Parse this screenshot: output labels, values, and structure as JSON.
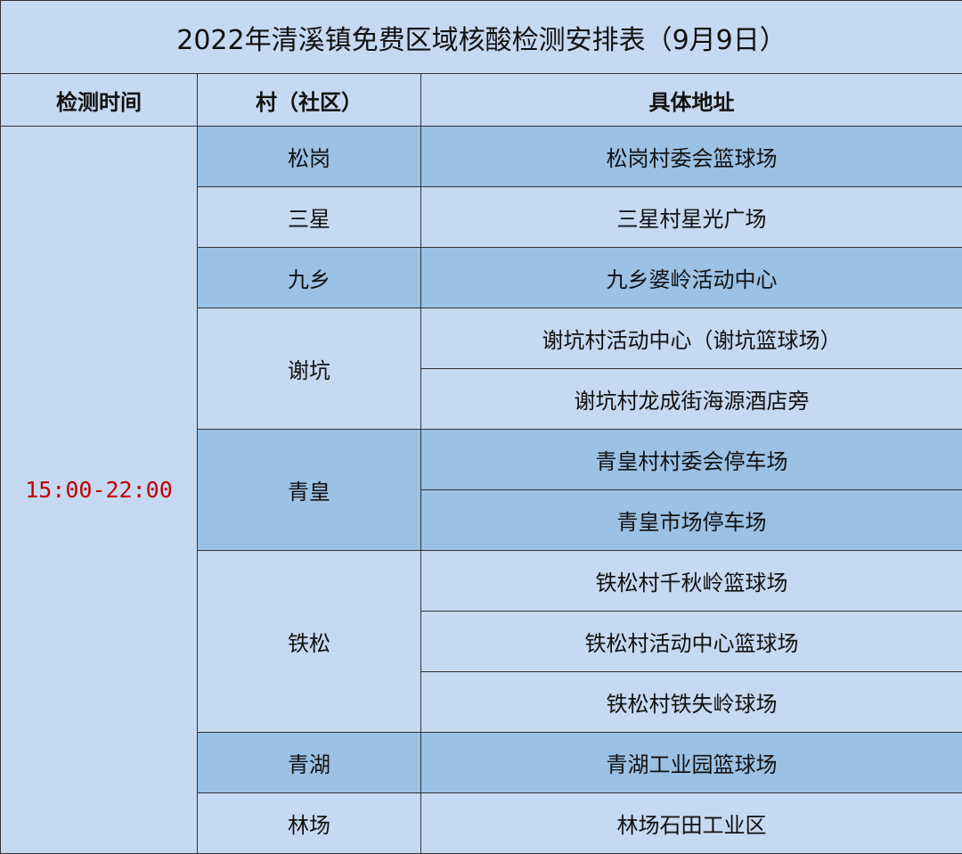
{
  "title": "2022年清溪镇免费区域核酸检测安排表（9月9日）",
  "headers": [
    "检测时间",
    "村（社区）",
    "具体地址"
  ],
  "time": "15:00-22:00",
  "colors": {
    "light": "#c5d9f1",
    "dark": "#9bc1e5",
    "time_text": "#c00000"
  },
  "villages": [
    {
      "name": "松岗",
      "shade": "dark",
      "addresses": [
        "松岗村委会篮球场"
      ]
    },
    {
      "name": "三星",
      "shade": "light",
      "addresses": [
        "三星村星光广场"
      ]
    },
    {
      "name": "九乡",
      "shade": "dark",
      "addresses": [
        "九乡婆岭活动中心"
      ]
    },
    {
      "name": "谢坑",
      "shade": "light",
      "addresses": [
        "谢坑村活动中心（谢坑篮球场）",
        "谢坑村龙成街海源酒店旁"
      ]
    },
    {
      "name": "青皇",
      "shade": "dark",
      "addresses": [
        "青皇村村委会停车场",
        "青皇市场停车场"
      ]
    },
    {
      "name": "铁松",
      "shade": "light",
      "addresses": [
        "铁松村千秋岭篮球场",
        "铁松村活动中心篮球场",
        "铁松村铁失岭球场"
      ]
    },
    {
      "name": "青湖",
      "shade": "dark",
      "addresses": [
        "青湖工业园篮球场"
      ]
    },
    {
      "name": "林场",
      "shade": "light",
      "addresses": [
        "林场石田工业区"
      ]
    }
  ]
}
